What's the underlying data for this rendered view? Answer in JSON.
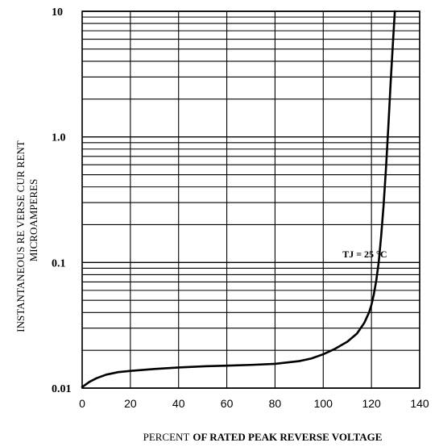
{
  "chart_data": {
    "type": "line",
    "xlabel_parts": [
      "PERCENT",
      "OF RATED PEAK REVERSE VOLTAGE"
    ],
    "ylabel_lines": [
      "INSTANTANEOUS  RE VERSE  CUR RENT",
      "MICROAMPERES"
    ],
    "xlim": [
      0,
      140
    ],
    "ylim": [
      0.01,
      10
    ],
    "y_scale": "log",
    "grid": true,
    "x_ticks": [
      {
        "value": 0,
        "label": "0"
      },
      {
        "value": 20,
        "label": "20"
      },
      {
        "value": 40,
        "label": "40"
      },
      {
        "value": 60,
        "label": "60"
      },
      {
        "value": 80,
        "label": "80"
      },
      {
        "value": 100,
        "label": "100"
      },
      {
        "value": 120,
        "label": "120"
      },
      {
        "value": 140,
        "label": "140"
      }
    ],
    "y_ticks": [
      {
        "value": 0.01,
        "label": "0.01"
      },
      {
        "value": 0.1,
        "label": "0.1"
      },
      {
        "value": 1,
        "label": "1.0"
      },
      {
        "value": 10,
        "label": "10"
      }
    ],
    "annotation": {
      "text": "TJ = 25 °C",
      "x": 108,
      "y": 0.11
    },
    "series": [
      {
        "color": "#000000",
        "points": [
          [
            0,
            0.0102
          ],
          [
            3,
            0.0112
          ],
          [
            6,
            0.012
          ],
          [
            10,
            0.0128
          ],
          [
            15,
            0.0134
          ],
          [
            20,
            0.0137
          ],
          [
            30,
            0.0142
          ],
          [
            40,
            0.0146
          ],
          [
            50,
            0.0149
          ],
          [
            60,
            0.0151
          ],
          [
            70,
            0.0153
          ],
          [
            80,
            0.0156
          ],
          [
            90,
            0.0164
          ],
          [
            95,
            0.0172
          ],
          [
            100,
            0.0186
          ],
          [
            105,
            0.0206
          ],
          [
            110,
            0.0234
          ],
          [
            114,
            0.0272
          ],
          [
            117,
            0.033
          ],
          [
            119,
            0.04
          ],
          [
            120,
            0.046
          ],
          [
            121,
            0.056
          ],
          [
            122,
            0.072
          ],
          [
            123,
            0.1
          ],
          [
            124,
            0.16
          ],
          [
            125,
            0.28
          ],
          [
            126,
            0.55
          ],
          [
            127,
            1.2
          ],
          [
            128,
            2.8
          ],
          [
            129,
            6.0
          ],
          [
            129.7,
            10
          ]
        ]
      }
    ]
  }
}
